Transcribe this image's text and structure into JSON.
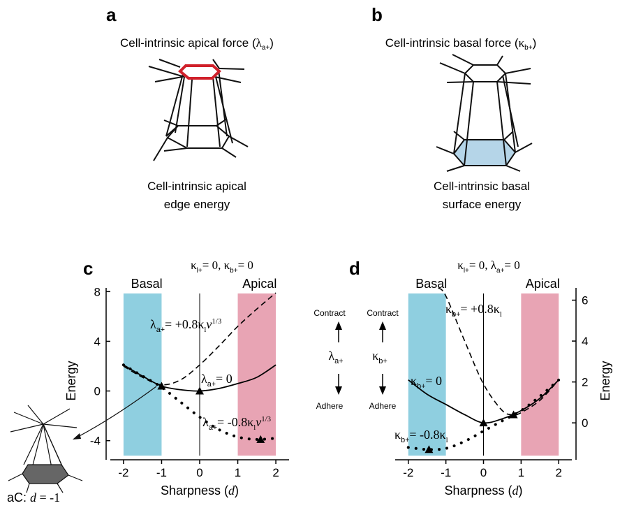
{
  "panels": {
    "a": {
      "letter": "a",
      "title_main": "Cell-intrinsic apical force (",
      "title_sym": "λ",
      "title_sub": "a+",
      "title_end": ")",
      "caption_line1": "Cell-intrinsic apical",
      "caption_line2": "edge energy",
      "highlight_color": "#d0202a"
    },
    "b": {
      "letter": "b",
      "title_main": "Cell-intrinsic basal force (",
      "title_sym": "κ",
      "title_sub": "b+",
      "title_end": ")",
      "caption_line1": "Cell-intrinsic basal",
      "caption_line2": "surface energy",
      "highlight_color": "#b5d5e8"
    }
  },
  "inset": {
    "label_prefix": "aC: ",
    "label_var": "d",
    "label_rest": " = -1"
  },
  "chart_data": [
    {
      "id": "c",
      "letter": "c",
      "type": "line",
      "title": "κl+= 0, κb+= 0",
      "title_parts": [
        "κ",
        "l+",
        "= 0, ",
        "κ",
        "b+",
        "= 0"
      ],
      "xlabel": "Sharpness (d)",
      "xlabel_main": "Sharpness (",
      "xlabel_var": "d",
      "xlabel_end": ")",
      "ylabel": "Energy",
      "xlim": [
        -2.2,
        2.2
      ],
      "ylim": [
        -5.2,
        8.3
      ],
      "xticks": [
        -2,
        -1,
        0,
        1,
        2
      ],
      "yticks": [
        -4,
        0,
        4,
        8
      ],
      "ytick_labels": [
        "-4",
        "0",
        "4",
        "8"
      ],
      "region_left": {
        "label": "Basal",
        "range": [
          -2,
          -1
        ],
        "color": "#8fcfe0"
      },
      "region_right": {
        "label": "Apical",
        "range": [
          1,
          2
        ],
        "color": "#e8a4b4"
      },
      "vline_x": 0,
      "series": [
        {
          "name": "λa+ = +0.8κl v^1/3",
          "style": "dashed",
          "x": [
            -2,
            -1.5,
            -1,
            -0.5,
            0,
            0.5,
            1,
            1.5,
            2
          ],
          "y": [
            2,
            1.1,
            0.5,
            0.9,
            2.1,
            3.6,
            5.2,
            6.6,
            7.9
          ]
        },
        {
          "name": "λa+ = 0",
          "style": "solid",
          "x": [
            -2,
            -1.5,
            -1,
            -0.5,
            0,
            0.5,
            1,
            1.5,
            2
          ],
          "y": [
            2.1,
            1.2,
            0.4,
            0.1,
            0,
            0.2,
            0.6,
            1.1,
            2.1
          ]
        },
        {
          "name": "λa+ = -0.8κl v^1/3",
          "style": "dotted",
          "x": [
            -2,
            -1.5,
            -1,
            -0.5,
            0,
            0.5,
            1,
            1.5,
            2
          ],
          "y": [
            2.1,
            1.2,
            0.3,
            -0.9,
            -2.1,
            -3.1,
            -3.7,
            -3.9,
            -3.8
          ]
        }
      ],
      "markers": [
        {
          "x": -1,
          "y": 0.4
        },
        {
          "x": 0,
          "y": 0
        },
        {
          "x": 1.6,
          "y": -3.9
        }
      ],
      "labels": [
        {
          "sym": "λ",
          "sub": "a+",
          "text": "= +0.8κ",
          "sub2": "l",
          "tail": "v",
          "sup": "1/3"
        },
        {
          "sym": "λ",
          "sub": "a+",
          "text": "= 0"
        },
        {
          "sym": "λ",
          "sub": "a+",
          "text": "= -0.8κ",
          "sub2": "l",
          "tail": "v",
          "sup": "1/3"
        }
      ],
      "arrow_top": "Contract",
      "arrow_bottom": "Adhere",
      "arrow_sym": "λ",
      "arrow_sub": "a+"
    },
    {
      "id": "d",
      "letter": "d",
      "type": "line",
      "title": "κl+= 0, λa+= 0",
      "title_parts": [
        "κ",
        "l+",
        "= 0, ",
        "λ",
        "a+",
        "= 0"
      ],
      "xlabel": "Sharpness (d)",
      "xlabel_main": "Sharpness (",
      "xlabel_var": "d",
      "xlabel_end": ")",
      "ylabel": "Energy",
      "xlim": [
        -2.2,
        2.2
      ],
      "ylim": [
        -1.6,
        6.6
      ],
      "xticks": [
        -2,
        -1,
        0,
        1,
        2
      ],
      "yticks": [
        0,
        2,
        4,
        6
      ],
      "ytick_labels": [
        "0",
        "2",
        "4",
        "6"
      ],
      "region_left": {
        "label": "Basal",
        "range": [
          -2,
          -1
        ],
        "color": "#8fcfe0"
      },
      "region_right": {
        "label": "Apical",
        "range": [
          1,
          2
        ],
        "color": "#e8a4b4"
      },
      "vline_x": 0,
      "series": [
        {
          "name": "κb+ = +0.8κl",
          "style": "dashed",
          "x": [
            -1.2,
            -1,
            -0.5,
            0,
            0.5,
            0.8,
            1,
            1.5,
            2
          ],
          "y": [
            7,
            6.2,
            4,
            1.9,
            0.6,
            0.4,
            0.5,
            1.1,
            2.1
          ]
        },
        {
          "name": "κb+ = 0",
          "style": "solid",
          "x": [
            -2,
            -1.5,
            -1,
            -0.5,
            0,
            0.5,
            1,
            1.5,
            2
          ],
          "y": [
            2.1,
            1.4,
            0.9,
            0.4,
            0,
            0.2,
            0.6,
            1.2,
            2.1
          ]
        },
        {
          "name": "κb+ = -0.8κl",
          "style": "dotted",
          "x": [
            -2,
            -1.5,
            -1,
            -0.5,
            0,
            0.5,
            1,
            1.5,
            2
          ],
          "y": [
            -1.2,
            -1.3,
            -1.25,
            -0.9,
            -0.4,
            0.1,
            0.6,
            1.3,
            2.1
          ]
        }
      ],
      "markers": [
        {
          "x": 0,
          "y": 0
        },
        {
          "x": 0.8,
          "y": 0.4
        },
        {
          "x": -1.45,
          "y": -1.3
        }
      ],
      "labels": [
        {
          "sym": "κ",
          "sub": "b+",
          "text": "= +0.8κ",
          "sub2": "l"
        },
        {
          "sym": "κ",
          "sub": "b+",
          "text": "= 0"
        },
        {
          "sym": "κ",
          "sub": "b+",
          "text": "= -0.8κ",
          "sub2": "l"
        }
      ],
      "arrow_top": "Contract",
      "arrow_bottom": "Adhere",
      "arrow_sym": "κ",
      "arrow_sub": "b+"
    }
  ]
}
